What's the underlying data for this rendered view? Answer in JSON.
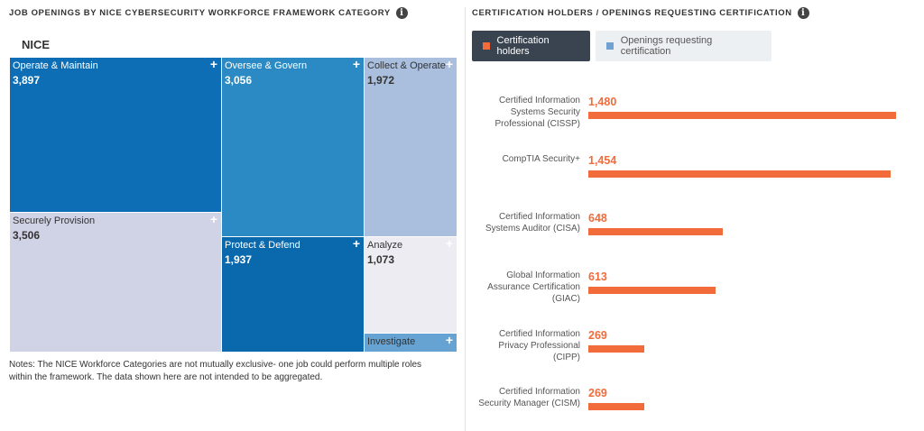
{
  "left_panel": {
    "title": "JOB OPENINGS BY NICE CYBERSECURITY WORKFORCE FRAMEWORK CATEGORY",
    "info_icon": "i",
    "root_label": "NICE",
    "notes": "Notes: The NICE Workforce Categories are not mutually exclusive- one job could perform multiple roles within the framework. The data shown here are not intended to be aggregated."
  },
  "right_panel": {
    "title": "CERTIFICATION HOLDERS / OPENINGS REQUESTING CERTIFICATION",
    "info_icon": "i",
    "legend_active": "Certification holders",
    "legend_inactive": "Openings requesting certification",
    "colors": {
      "holders": "#f26b3a",
      "openings": "#6fa1d2",
      "active_bg": "#3a4450",
      "inactive_bg": "#edf0f3"
    }
  },
  "chart_data": [
    {
      "type": "treemap",
      "root": "NICE",
      "categories": [
        "Operate & Maintain",
        "Securely Provision",
        "Oversee & Govern",
        "Protect & Defend",
        "Collect & Operate",
        "Analyze",
        "Investigate"
      ],
      "values": [
        3897,
        3506,
        3056,
        1937,
        1972,
        1073,
        null
      ],
      "value_labels": [
        "3,897",
        "3,506",
        "3,056",
        "1,937",
        "1,972",
        "1,073",
        ""
      ],
      "colors": [
        "#0e6eb5",
        "#d0d2e6",
        "#2b8ac3",
        "#0a68ad",
        "#a9bfdd",
        "#edecf3",
        "#66a3d2"
      ],
      "text_colors": [
        "#ffffff",
        "#333333",
        "#ffffff",
        "#ffffff",
        "#333333",
        "#333333",
        "#333333"
      ],
      "plus_icon": "+"
    },
    {
      "type": "bar",
      "orientation": "horizontal",
      "series": [
        {
          "name": "Certification holders",
          "values": [
            1480,
            1454,
            648,
            613,
            269,
            269
          ]
        }
      ],
      "categories": [
        "Certified Information Systems Security Professional (CISSP)",
        "CompTIA Security+",
        "Certified Information Systems Auditor (CISA)",
        "Global Information Assurance Certification (GIAC)",
        "Certified Information Privacy Professional (CIPP)",
        "Certified Information Security Manager (CISM)"
      ],
      "value_labels": [
        "1,480",
        "1,454",
        "648",
        "613",
        "269",
        "269"
      ],
      "xlim": [
        0,
        1480
      ]
    }
  ]
}
